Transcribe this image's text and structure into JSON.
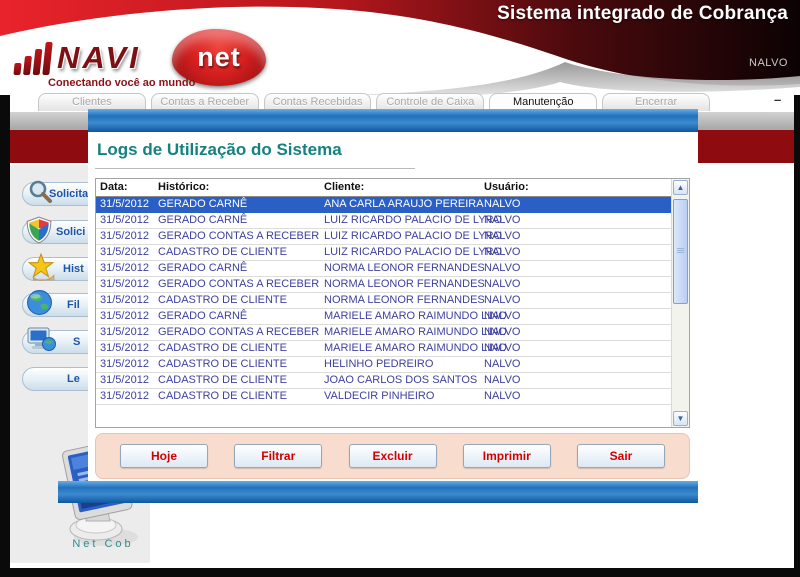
{
  "header": {
    "title": "Sistema integrado de Cobrança",
    "user": "NALVO",
    "logo": {
      "name": "NAVI",
      "net": "net",
      "tagline": "Conectando você ao mundo",
      "signal_bars_icon": "signal-bars-icon"
    }
  },
  "window": {
    "minimize": "–"
  },
  "tabs": [
    {
      "label": "Clientes",
      "active": false
    },
    {
      "label": "Contas a Receber",
      "active": false
    },
    {
      "label": "Contas Recebidas",
      "active": false
    },
    {
      "label": "Controle de Caixa",
      "active": false
    },
    {
      "label": "Manutenção",
      "active": true
    },
    {
      "label": "Encerrar",
      "active": false
    }
  ],
  "sidebar": {
    "buttons": [
      {
        "label": "Solicitar",
        "icon": "magnifier-icon"
      },
      {
        "label": "Solici",
        "icon": "shield-icon"
      },
      {
        "label": "Hist",
        "icon": "star-hand-icon"
      },
      {
        "label": "Fil",
        "icon": "globe-icon"
      },
      {
        "label": "S",
        "icon": "computer-globe-icon"
      },
      {
        "label": "Le",
        "icon": null
      }
    ],
    "footer_label": "Net Cob",
    "footer_icon": "monitor-icon"
  },
  "dialog": {
    "title": "Logs de Utilização do Sistema",
    "table": {
      "columns": [
        "Data:",
        "Histórico:",
        "Cliente:",
        "Usuário:"
      ],
      "selected_row_index": 0,
      "rows": [
        [
          "31/5/2012",
          "GERADO CARNÊ",
          "ANA CARLA ARAUJO PEREIRA",
          "NALVO"
        ],
        [
          "31/5/2012",
          "GERADO CARNÊ",
          "LUIZ RICARDO PALACIO DE LYRO",
          "NALVO"
        ],
        [
          "31/5/2012",
          "GERADO CONTAS A RECEBER",
          "LUIZ RICARDO PALACIO DE LYRO",
          "NALVO"
        ],
        [
          "31/5/2012",
          "CADASTRO DE CLIENTE",
          "LUIZ RICARDO PALACIO DE LYRO",
          "NALVO"
        ],
        [
          "31/5/2012",
          "GERADO CARNÊ",
          "NORMA LEONOR FERNANDES",
          "NALVO"
        ],
        [
          "31/5/2012",
          "GERADO CONTAS A RECEBER",
          "NORMA LEONOR FERNANDES",
          "NALVO"
        ],
        [
          "31/5/2012",
          "CADASTRO DE CLIENTE",
          "NORMA LEONOR FERNANDES",
          "NALVO"
        ],
        [
          "31/5/2012",
          "GERADO CARNÊ",
          "MARIELE AMARO RAIMUNDO LINO",
          "NALVO"
        ],
        [
          "31/5/2012",
          "GERADO CONTAS A RECEBER",
          "MARIELE AMARO RAIMUNDO LINO",
          "NALVO"
        ],
        [
          "31/5/2012",
          "CADASTRO DE CLIENTE",
          "MARIELE AMARO RAIMUNDO LINO",
          "NALVO"
        ],
        [
          "31/5/2012",
          "CADASTRO DE CLIENTE",
          "HELINHO PEDREIRO",
          "NALVO"
        ],
        [
          "31/5/2012",
          "CADASTRO DE CLIENTE",
          "JOAO CARLOS DOS SANTOS",
          "NALVO"
        ],
        [
          "31/5/2012",
          "CADASTRO DE CLIENTE",
          "VALDECIR PINHEIRO",
          "NALVO"
        ]
      ]
    },
    "buttons": [
      "Hoje",
      "Filtrar",
      "Excluir",
      "Imprimir",
      "Sair"
    ]
  },
  "colors": {
    "header_red": "#e9232b",
    "header_black": "#0c0203",
    "band_red": "#8e0c10",
    "bar_blue": "#2272bb",
    "title_teal": "#178080",
    "row_text_navy": "#3f3f9f",
    "selected_row_blue": "#2a5fc6",
    "button_text_red": "#d40000",
    "panel_peach": "#f8dccd"
  }
}
